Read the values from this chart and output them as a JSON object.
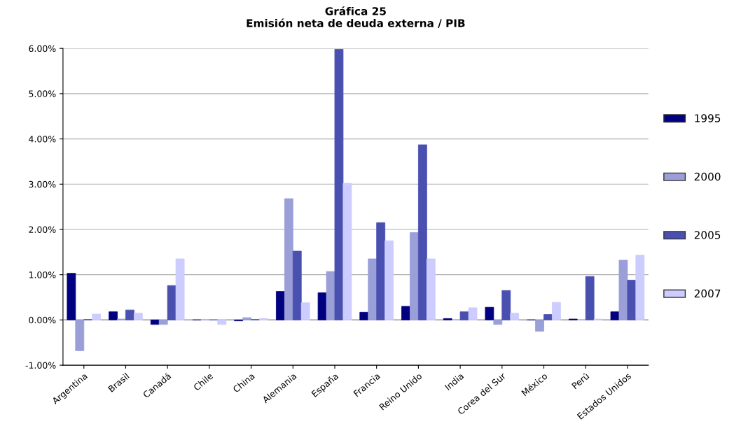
{
  "chart_data": {
    "type": "bar",
    "title": "Gráfica 25\nEmisión neta de deuda externa / PIB",
    "categories": [
      "Argentina",
      "Brasil",
      "Canadá",
      "Chile",
      "China",
      "Alemania",
      "España",
      "Francia",
      "Reino Unido",
      "India",
      "Corea del Sur",
      "México",
      "Perú",
      "Estados Unidos"
    ],
    "series": [
      {
        "name": "1995",
        "color": "#000080",
        "values": [
          1.03,
          0.18,
          -0.1,
          0.0,
          -0.02,
          0.63,
          0.6,
          0.17,
          0.3,
          0.03,
          0.28,
          0.0,
          0.02,
          0.18
        ]
      },
      {
        "name": "2000",
        "color": "#9a9fd8",
        "values": [
          -0.68,
          0.02,
          -0.1,
          0.0,
          0.05,
          2.68,
          1.07,
          1.35,
          1.93,
          0.0,
          -0.1,
          -0.25,
          0.0,
          1.32
        ]
      },
      {
        "name": "2005",
        "color": "#4a50b0",
        "values": [
          0.01,
          0.22,
          0.76,
          0.0,
          0.01,
          1.52,
          5.98,
          2.15,
          3.87,
          0.18,
          0.65,
          0.12,
          0.96,
          0.88
        ]
      },
      {
        "name": "2007",
        "color": "#ccccff",
        "values": [
          0.13,
          0.15,
          1.35,
          -0.1,
          0.03,
          0.38,
          3.02,
          1.75,
          1.35,
          0.27,
          0.15,
          0.39,
          0.02,
          1.43
        ]
      }
    ],
    "ylim": [
      -1,
      6
    ],
    "yticks": [
      {
        "value": -1,
        "label": "-1.00%"
      },
      {
        "value": 0,
        "label": "0.00%"
      },
      {
        "value": 1,
        "label": "1.00%"
      },
      {
        "value": 2,
        "label": "2.00%"
      },
      {
        "value": 3,
        "label": "3.00%"
      },
      {
        "value": 4,
        "label": "4.00%"
      },
      {
        "value": 5,
        "label": "5.00%"
      },
      {
        "value": 6,
        "label": "6.00%"
      }
    ],
    "grid": "y",
    "legend": "right"
  }
}
